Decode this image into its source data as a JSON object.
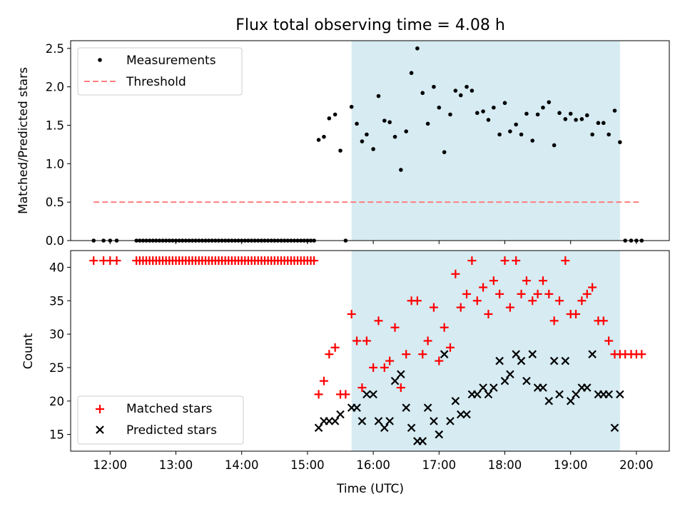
{
  "chart_data": [
    {
      "type": "scatter",
      "title": "Flux total observing time = 4.08 h",
      "ylabel": "Matched/Predicted stars",
      "xlabel": "",
      "ylim": [
        0,
        2.6
      ],
      "yticks": [
        "0.0",
        "0.5",
        "1.0",
        "1.5",
        "2.0",
        "2.5"
      ],
      "xlim_hours": [
        11.4,
        20.5
      ],
      "shaded_interval": [
        15.67,
        19.75
      ],
      "legend_position": "upper-left",
      "series": [
        {
          "name": "Measurements",
          "marker": "dot",
          "color": "#000000",
          "x": [
            11.75,
            11.9,
            12.0,
            12.1,
            12.4,
            12.45,
            12.5,
            12.55,
            12.6,
            12.65,
            12.7,
            12.75,
            12.8,
            12.85,
            12.9,
            12.95,
            13.0,
            13.05,
            13.1,
            13.15,
            13.2,
            13.25,
            13.3,
            13.35,
            13.4,
            13.45,
            13.5,
            13.55,
            13.6,
            13.65,
            13.7,
            13.75,
            13.8,
            13.85,
            13.9,
            13.95,
            14.0,
            14.05,
            14.1,
            14.15,
            14.2,
            14.25,
            14.3,
            14.35,
            14.4,
            14.45,
            14.5,
            14.55,
            14.6,
            14.65,
            14.7,
            14.75,
            14.8,
            14.85,
            14.9,
            14.95,
            15.0,
            15.05,
            15.1,
            15.17,
            15.25,
            15.33,
            15.42,
            15.5,
            15.58,
            15.67,
            15.75,
            15.83,
            15.9,
            16.0,
            16.08,
            16.17,
            16.25,
            16.33,
            16.42,
            16.5,
            16.58,
            16.67,
            16.75,
            16.83,
            16.92,
            17.0,
            17.08,
            17.17,
            17.25,
            17.33,
            17.42,
            17.5,
            17.58,
            17.67,
            17.75,
            17.83,
            17.92,
            18.0,
            18.08,
            18.17,
            18.25,
            18.33,
            18.42,
            18.5,
            18.58,
            18.67,
            18.75,
            18.83,
            18.92,
            19.0,
            19.08,
            19.17,
            19.25,
            19.33,
            19.42,
            19.5,
            19.58,
            19.67,
            19.75,
            19.83,
            19.92,
            20.0,
            20.08
          ],
          "y": [
            0,
            0,
            0,
            0,
            0,
            0,
            0,
            0,
            0,
            0,
            0,
            0,
            0,
            0,
            0,
            0,
            0,
            0,
            0,
            0,
            0,
            0,
            0,
            0,
            0,
            0,
            0,
            0,
            0,
            0,
            0,
            0,
            0,
            0,
            0,
            0,
            0,
            0,
            0,
            0,
            0,
            0,
            0,
            0,
            0,
            0,
            0,
            0,
            0,
            0,
            0,
            0,
            0,
            0,
            0,
            0,
            0,
            0,
            0,
            1.31,
            1.35,
            1.59,
            1.64,
            1.17,
            0,
            1.74,
            1.52,
            1.29,
            1.38,
            1.19,
            1.88,
            1.56,
            1.54,
            1.35,
            0.92,
            1.42,
            2.18,
            2.5,
            1.92,
            1.52,
            2.0,
            1.73,
            1.15,
            1.64,
            1.95,
            1.89,
            2.0,
            1.95,
            1.66,
            1.68,
            1.57,
            1.73,
            1.38,
            1.79,
            1.42,
            1.51,
            1.38,
            1.65,
            1.3,
            1.64,
            1.73,
            1.8,
            1.24,
            1.66,
            1.58,
            1.65,
            1.57,
            1.58,
            1.63,
            1.38,
            1.53,
            1.53,
            1.38,
            1.69,
            1.28,
            0,
            0,
            0,
            0
          ]
        },
        {
          "name": "Threshold",
          "marker": "dashed-line",
          "color": "#ff7f7f",
          "x": [
            11.75,
            20.05
          ],
          "y": [
            0.5,
            0.5
          ]
        }
      ]
    },
    {
      "type": "scatter",
      "title": "",
      "ylabel": "Count",
      "xlabel": "Time (UTC)",
      "ylim": [
        12.5,
        42.5
      ],
      "yticks": [
        "15",
        "20",
        "25",
        "30",
        "35",
        "40"
      ],
      "xlim_hours": [
        11.4,
        20.5
      ],
      "xticks": [
        "12:00",
        "13:00",
        "14:00",
        "15:00",
        "16:00",
        "17:00",
        "18:00",
        "19:00",
        "20:00"
      ],
      "shaded_interval": [
        15.67,
        19.75
      ],
      "legend_position": "lower-left",
      "series": [
        {
          "name": "Matched stars",
          "marker": "plus",
          "color": "#ff0000",
          "x": [
            11.75,
            11.9,
            12.0,
            12.1,
            12.4,
            12.45,
            12.5,
            12.55,
            12.6,
            12.65,
            12.7,
            12.75,
            12.8,
            12.85,
            12.9,
            12.95,
            13.0,
            13.05,
            13.1,
            13.15,
            13.2,
            13.25,
            13.3,
            13.35,
            13.4,
            13.45,
            13.5,
            13.55,
            13.6,
            13.65,
            13.7,
            13.75,
            13.8,
            13.85,
            13.9,
            13.95,
            14.0,
            14.05,
            14.1,
            14.15,
            14.2,
            14.25,
            14.3,
            14.35,
            14.4,
            14.45,
            14.5,
            14.55,
            14.6,
            14.65,
            14.7,
            14.75,
            14.8,
            14.85,
            14.9,
            14.95,
            15.0,
            15.05,
            15.1,
            15.17,
            15.25,
            15.33,
            15.42,
            15.5,
            15.58,
            15.67,
            15.75,
            15.83,
            15.9,
            16.0,
            16.08,
            16.17,
            16.25,
            16.33,
            16.42,
            16.5,
            16.58,
            16.67,
            16.75,
            16.83,
            16.92,
            17.0,
            17.08,
            17.17,
            17.25,
            17.33,
            17.42,
            17.5,
            17.58,
            17.67,
            17.75,
            17.83,
            17.92,
            18.0,
            18.08,
            18.17,
            18.25,
            18.33,
            18.42,
            18.5,
            18.58,
            18.67,
            18.75,
            18.83,
            18.92,
            19.0,
            19.08,
            19.17,
            19.25,
            19.33,
            19.42,
            19.5,
            19.58,
            19.67,
            19.75,
            19.83,
            19.92,
            20.0,
            20.08
          ],
          "y": [
            41,
            41,
            41,
            41,
            41,
            41,
            41,
            41,
            41,
            41,
            41,
            41,
            41,
            41,
            41,
            41,
            41,
            41,
            41,
            41,
            41,
            41,
            41,
            41,
            41,
            41,
            41,
            41,
            41,
            41,
            41,
            41,
            41,
            41,
            41,
            41,
            41,
            41,
            41,
            41,
            41,
            41,
            41,
            41,
            41,
            41,
            41,
            41,
            41,
            41,
            41,
            41,
            41,
            41,
            41,
            41,
            41,
            41,
            41,
            21,
            23,
            27,
            28,
            21,
            21,
            33,
            29,
            22,
            29,
            25,
            32,
            25,
            26,
            31,
            22,
            27,
            35,
            35,
            27,
            29,
            34,
            26,
            31,
            28,
            39,
            34,
            36,
            41,
            35,
            37,
            33,
            38,
            36,
            41,
            34,
            41,
            36,
            38,
            35,
            36,
            38,
            36,
            32,
            35,
            41,
            33,
            33,
            35,
            36,
            37,
            32,
            32,
            29,
            27,
            27,
            27,
            27,
            27,
            27
          ]
        },
        {
          "name": "Predicted stars",
          "marker": "x",
          "color": "#000000",
          "x": [
            15.17,
            15.25,
            15.33,
            15.42,
            15.5,
            15.67,
            15.75,
            15.83,
            15.9,
            16.0,
            16.08,
            16.17,
            16.25,
            16.33,
            16.42,
            16.5,
            16.58,
            16.67,
            16.75,
            16.83,
            16.92,
            17.0,
            17.08,
            17.17,
            17.25,
            17.33,
            17.42,
            17.5,
            17.58,
            17.67,
            17.75,
            17.83,
            17.92,
            18.0,
            18.08,
            18.17,
            18.25,
            18.33,
            18.42,
            18.5,
            18.58,
            18.67,
            18.75,
            18.83,
            18.92,
            19.0,
            19.08,
            19.17,
            19.25,
            19.33,
            19.42,
            19.5,
            19.58,
            19.67,
            19.75
          ],
          "y": [
            16,
            17,
            17,
            17,
            18,
            19,
            19,
            17,
            21,
            21,
            17,
            16,
            17,
            23,
            24,
            19,
            16,
            14,
            14,
            19,
            17,
            15,
            27,
            17,
            20,
            18,
            18,
            21,
            21,
            22,
            21,
            22,
            26,
            23,
            24,
            27,
            26,
            23,
            27,
            22,
            22,
            20,
            26,
            21,
            26,
            20,
            21,
            22,
            22,
            27,
            21,
            21,
            21,
            16,
            21
          ]
        }
      ]
    }
  ]
}
